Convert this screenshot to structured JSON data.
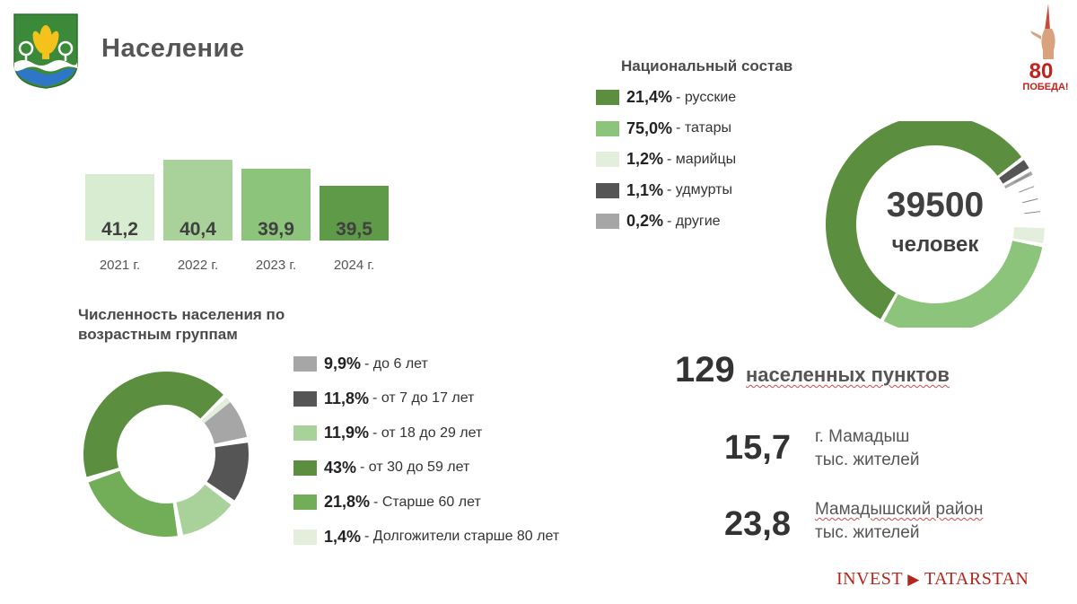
{
  "header": {
    "title": "Население"
  },
  "years_chart": {
    "type": "bar",
    "categories": [
      "2021 г.",
      "2022 г.",
      "2023 г.",
      "2024 г."
    ],
    "values": [
      "41,2",
      "40,4",
      "39,9",
      "39,5"
    ],
    "colors": [
      "#d8ecd2",
      "#a9d29b",
      "#8cc47b",
      "#5e9a47"
    ]
  },
  "chart_data": [
    {
      "type": "bar",
      "categories": [
        "2021 г.",
        "2022 г.",
        "2023 г.",
        "2024 г."
      ],
      "values": [
        41.2,
        40.4,
        39.9,
        39.5
      ]
    },
    {
      "type": "pie",
      "title": "Национальный состав",
      "categories": [
        "русские",
        "татары",
        "марийцы",
        "удмурты",
        "другие"
      ],
      "values": [
        21.4,
        75.0,
        1.2,
        1.1,
        0.2
      ]
    },
    {
      "type": "pie",
      "title": "Численность населения по возрастным группам",
      "categories": [
        "до 6 лет",
        "от 7 до 17 лет",
        "от 18 до 29 лет",
        "от 30 до 59 лет",
        "Старше 60 лет",
        "Долгожители старше 80 лет"
      ],
      "values": [
        9.9,
        11.8,
        11.9,
        43,
        21.8,
        1.4
      ]
    }
  ],
  "national": {
    "title": "Национальный состав",
    "items": [
      {
        "pct": "21,4%",
        "label": "- русские",
        "color": "#5b8f3f"
      },
      {
        "pct": "75,0%",
        "label": "- татары",
        "color": "#8cc47b"
      },
      {
        "pct": "1,2%",
        "label": "- марийцы",
        "color": "#e3efdc"
      },
      {
        "pct": "1,1%",
        "label": "- удмурты",
        "color": "#555555"
      },
      {
        "pct": "0,2%",
        "label": "- другие",
        "color": "#a6a6a6"
      }
    ],
    "total_value": "39500",
    "total_unit": "человек"
  },
  "age": {
    "title": "Численность населения по возрастным группам",
    "items": [
      {
        "pct": "9,9%",
        "label": "- до 6 лет",
        "color": "#a6a6a6"
      },
      {
        "pct": "11,8%",
        "label": "- от 7 до 17 лет",
        "color": "#555555"
      },
      {
        "pct": "11,9%",
        "label": "- от 18 до 29 лет",
        "color": "#a9d29b"
      },
      {
        "pct": "43%",
        "label": "- от 30 до 59 лет",
        "color": "#5b8f3f"
      },
      {
        "pct": "21,8%",
        "label": "- Старше 60 лет",
        "color": "#72ad58"
      },
      {
        "pct": "1,4%",
        "label": "- Долгожители старше 80 лет",
        "color": "#e3efdc"
      }
    ]
  },
  "settlements": {
    "value": "129",
    "label": "населенных пунктов"
  },
  "stats": [
    {
      "value": "15,7",
      "line1": "г. Мамадыш",
      "line2": "тыс. жителей"
    },
    {
      "value": "23,8",
      "line1": "Мамадышский район",
      "line2": "тыс. жителей"
    }
  ],
  "branding": {
    "victory_number": "80",
    "victory_word": "ПОБЕДА!",
    "footer_left": "INVEST",
    "footer_right": "TATARSTAN"
  }
}
